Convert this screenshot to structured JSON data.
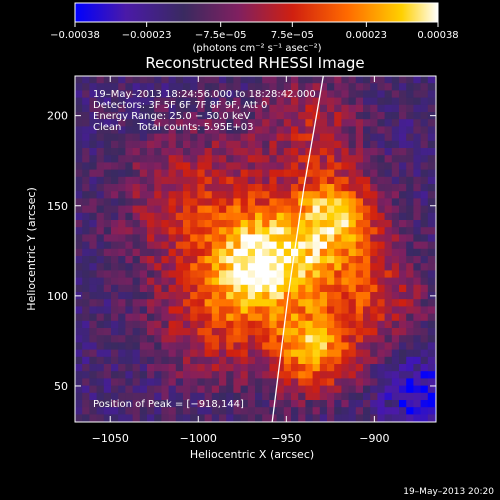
{
  "chart_data": {
    "type": "heatmap",
    "title": "Reconstructed RHESSI Image",
    "xlabel": "Heliocentric X (arcsec)",
    "ylabel": "Heliocentric Y (arcsec)",
    "xlim": [
      -1070,
      -865
    ],
    "ylim": [
      30,
      222
    ],
    "x_ticks": [
      -1050,
      -1000,
      -950,
      -900
    ],
    "x_tick_labels": [
      "−1050",
      "−1000",
      "−950",
      "−900"
    ],
    "y_ticks": [
      50,
      100,
      150,
      200
    ],
    "y_tick_labels": [
      "50",
      "100",
      "150",
      "200"
    ],
    "colorbar": {
      "range": [
        -0.00038,
        0.00038
      ],
      "ticks": [
        -0.00038,
        -0.00023,
        -7.5e-05,
        7.5e-05,
        0.00023,
        0.00038
      ],
      "tick_labels": [
        "−0.00038",
        "−0.00023",
        "−7.5e−05",
        "7.5e−05",
        "0.00023",
        "0.00038"
      ],
      "unit_text": "(photons cm⁻² s⁻¹ asec⁻²)",
      "colormap": [
        "#0000ff",
        "#4a1aa8",
        "#3a2a60",
        "#802060",
        "#d02010",
        "#ff6a00",
        "#ffd000",
        "#ffffff"
      ]
    },
    "info_lines": [
      "19–May–2013 18:24:56.000 to 18:28:42.000",
      "Detectors: 3F 5F 6F 7F 8F 9F, Att 0",
      "Energy Range: 25.0 − 50.0 keV",
      "Clean     Total counts: 5.95E+03"
    ],
    "peak_text": "Position of Peak = [−918,144]",
    "peak": [
      -918,
      144
    ],
    "limb_points": [
      [
        -958,
        30
      ],
      [
        -949,
        100
      ],
      [
        -940,
        160
      ],
      [
        -929,
        222
      ]
    ],
    "emission_sources": [
      {
        "x": -960,
        "y": 118,
        "sigma": 22,
        "amp": 1.0
      },
      {
        "x": -922,
        "y": 145,
        "sigma": 18,
        "amp": 0.85
      },
      {
        "x": -935,
        "y": 68,
        "sigma": 16,
        "amp": 0.8
      },
      {
        "x": -1000,
        "y": 150,
        "sigma": 30,
        "amp": 0.5
      },
      {
        "x": -905,
        "y": 100,
        "sigma": 22,
        "amp": 0.55
      },
      {
        "x": -990,
        "y": 85,
        "sigma": 25,
        "amp": 0.45
      },
      {
        "x": -935,
        "y": 195,
        "sigma": 20,
        "amp": 0.4
      }
    ],
    "timestamp": "19–May–2013 20:20"
  }
}
